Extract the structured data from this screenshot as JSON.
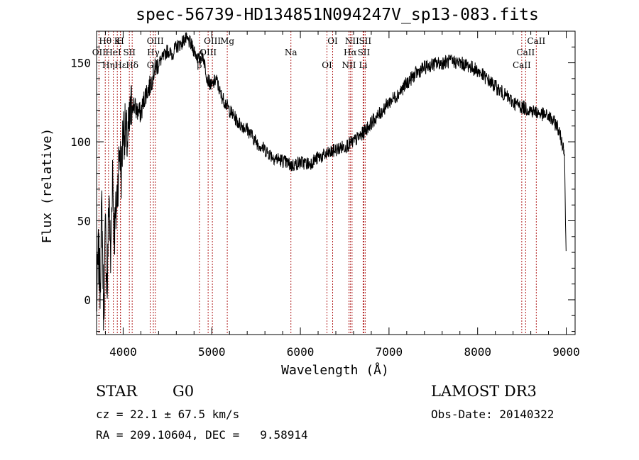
{
  "header": {
    "title": "spec-56739-HD134851N094247V_sp13-083.fits"
  },
  "info": {
    "object_class": "STAR",
    "subclass": "G0",
    "survey": "LAMOST DR3",
    "cz": "cz = 22.1 ± 67.5 km/s",
    "obs_date": "Obs-Date: 20140322",
    "radec": "RA = 209.10604, DEC =   9.58914"
  },
  "chart_data": {
    "type": "line",
    "title": "spec-56739-HD134851N094247V_sp13-083.fits",
    "xlabel": "Wavelength (Å)",
    "ylabel": "Flux (relative)",
    "xlim": [
      3700,
      9100
    ],
    "ylim": [
      -22,
      170
    ],
    "xticks": [
      4000,
      5000,
      6000,
      7000,
      8000,
      9000
    ],
    "yticks": [
      0,
      50,
      100,
      150
    ],
    "ytick_labels": [
      "0",
      "50",
      "100",
      "150"
    ],
    "series": [
      {
        "name": "flux",
        "x": [
          3700,
          3720,
          3740,
          3760,
          3780,
          3800,
          3820,
          3840,
          3860,
          3880,
          3900,
          3920,
          3940,
          3960,
          3980,
          4000,
          4050,
          4100,
          4150,
          4200,
          4250,
          4300,
          4350,
          4400,
          4450,
          4500,
          4550,
          4600,
          4650,
          4700,
          4750,
          4800,
          4850,
          4900,
          4950,
          5000,
          5050,
          5100,
          5150,
          5200,
          5300,
          5400,
          5500,
          5600,
          5700,
          5800,
          5900,
          6000,
          6100,
          6200,
          6300,
          6400,
          6500,
          6600,
          6700,
          6800,
          6900,
          7000,
          7100,
          7200,
          7300,
          7400,
          7500,
          7600,
          7700,
          7800,
          7900,
          8000,
          8100,
          8200,
          8300,
          8400,
          8500,
          8600,
          8700,
          8800,
          8900,
          8950,
          8980,
          9000
        ],
        "y": [
          -5,
          30,
          10,
          60,
          -10,
          45,
          5,
          70,
          20,
          85,
          40,
          55,
          75,
          95,
          80,
          110,
          100,
          125,
          120,
          118,
          130,
          135,
          145,
          150,
          153,
          158,
          155,
          160,
          162,
          165,
          163,
          158,
          152,
          155,
          140,
          135,
          140,
          130,
          125,
          120,
          112,
          108,
          100,
          95,
          90,
          88,
          85,
          87,
          86,
          90,
          92,
          95,
          97,
          100,
          105,
          112,
          118,
          125,
          130,
          137,
          143,
          147,
          149,
          150,
          151,
          150,
          148,
          145,
          140,
          135,
          130,
          125,
          122,
          120,
          118,
          116,
          110,
          100,
          95,
          20
        ]
      }
    ],
    "lines": [
      {
        "label": "Hθ",
        "wave": 3798
      },
      {
        "label": "OII",
        "wave": 3727
      },
      {
        "label": "Hε",
        "wave": 3970
      },
      {
        "label": "K",
        "wave": 3934
      },
      {
        "label": "HeI",
        "wave": 3889
      },
      {
        "label": "Hη",
        "wave": 3835
      },
      {
        "label": "H",
        "wave": 3969
      },
      {
        "label": "SII",
        "wave": 4070
      },
      {
        "label": "Hδ",
        "wave": 4102
      },
      {
        "label": "OIII",
        "wave": 4363
      },
      {
        "label": "Hγ",
        "wave": 4341
      },
      {
        "label": "G",
        "wave": 4305
      },
      {
        "label": "OIII",
        "wave": 5007
      },
      {
        "label": "OIII",
        "wave": 4959
      },
      {
        "label": "β",
        "wave": 4861
      },
      {
        "label": "Mg",
        "wave": 5175
      },
      {
        "label": "Na",
        "wave": 5893
      },
      {
        "label": "OI",
        "wave": 6300
      },
      {
        "label": "OI",
        "wave": 6364
      },
      {
        "label": "Hα",
        "wave": 6563
      },
      {
        "label": "NII",
        "wave": 6548
      },
      {
        "label": "NII",
        "wave": 6583
      },
      {
        "label": "SII",
        "wave": 6716
      },
      {
        "label": "Li",
        "wave": 6708
      },
      {
        "label": "SII",
        "wave": 6731
      },
      {
        "label": "CaII",
        "wave": 8542
      },
      {
        "label": "CaII",
        "wave": 8498
      },
      {
        "label": "CaII",
        "wave": 8662
      }
    ]
  }
}
